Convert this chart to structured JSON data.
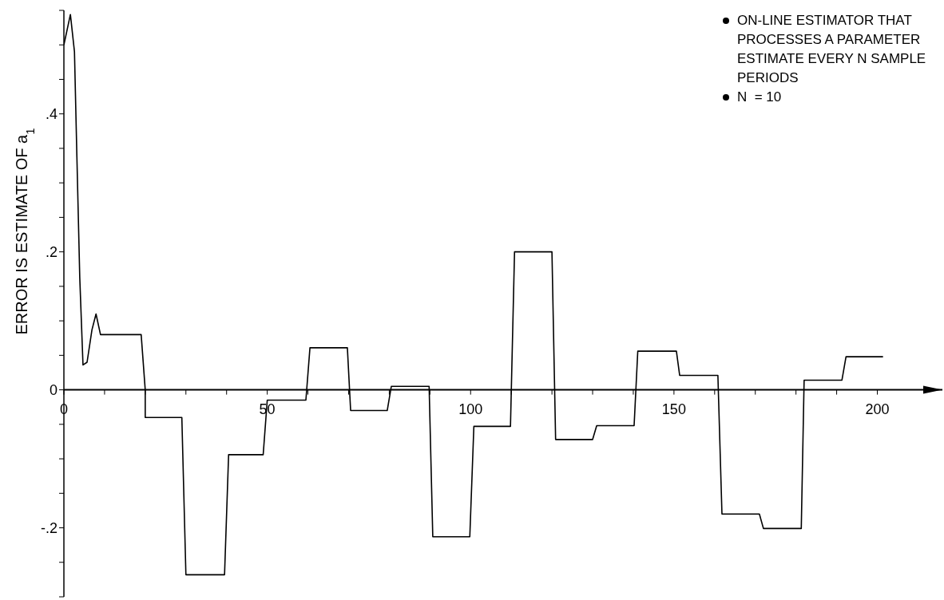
{
  "chart_data": {
    "type": "line",
    "ylabel": "ERROR IS ESTIMATE OF a$_{1}$",
    "annotations": [
      "ON-LINE ESTIMATOR THAT PROCESSES A PARAMETER ESTIMATE EVERY N SAMPLE PERIODS",
      "N  = 10"
    ],
    "xlim": [
      0,
      216
    ],
    "ylim": [
      -0.3,
      0.55
    ],
    "xticks": [
      0,
      {
        "value": 10,
        "label": null
      },
      {
        "value": 20,
        "label": null
      },
      {
        "value": 30,
        "label": null
      },
      {
        "value": 40,
        "label": null
      },
      50,
      {
        "value": 60,
        "label": null
      },
      {
        "value": 70,
        "label": null
      },
      {
        "value": 80,
        "label": null
      },
      {
        "value": 90,
        "label": null
      },
      100,
      {
        "value": 110,
        "label": null
      },
      {
        "value": 120,
        "label": null
      },
      {
        "value": 130,
        "label": null
      },
      {
        "value": 140,
        "label": null
      },
      150,
      {
        "value": 160,
        "label": null
      },
      {
        "value": 170,
        "label": null
      },
      {
        "value": 180,
        "label": null
      },
      {
        "value": 190,
        "label": null
      },
      200
    ],
    "yticks": [
      {
        "value": -0.3,
        "label": null
      },
      {
        "value": -0.25,
        "label": null
      },
      {
        "value": -0.2,
        "label": "-.2"
      },
      {
        "value": -0.15,
        "label": null
      },
      {
        "value": -0.1,
        "label": null
      },
      {
        "value": -0.05,
        "label": null
      },
      0,
      {
        "value": 0.05,
        "label": null
      },
      {
        "value": 0.1,
        "label": null
      },
      {
        "value": 0.15,
        "label": null
      },
      {
        "value": 0.2,
        "label": ".2"
      },
      {
        "value": 0.25,
        "label": null
      },
      {
        "value": 0.3,
        "label": null
      },
      {
        "value": 0.35,
        "label": null
      },
      {
        "value": 0.4,
        "label": ".4"
      },
      {
        "value": 0.45,
        "label": null
      },
      {
        "value": 0.5,
        "label": null
      },
      {
        "value": 0.55,
        "label": null
      }
    ],
    "marker": "none",
    "series": [
      {
        "color": "#000000",
        "x": [
          0,
          1.6,
          2.6,
          3.2,
          3.9,
          4.7,
          5.7,
          6.9,
          7.9,
          9,
          19,
          20,
          20,
          29,
          30,
          39.5,
          40.5,
          49,
          50,
          59.5,
          60.5,
          69.7,
          70.5,
          79.5,
          80.5,
          89.8,
          90.7,
          99.8,
          100.8,
          109.8,
          110.8,
          120,
          120.9,
          130,
          131,
          140.2,
          141.1,
          150.6,
          151.4,
          160.8,
          161.8,
          171,
          172,
          181.3,
          182,
          191.3,
          192.3,
          201.4
        ],
        "values": [
          0.5,
          0.544,
          0.49,
          0.337,
          0.163,
          0.036,
          0.04,
          0.087,
          0.11,
          0.08,
          0.08,
          0,
          -0.04,
          -0.04,
          -0.268,
          -0.268,
          -0.094,
          -0.094,
          -0.015,
          -0.015,
          0.061,
          0.061,
          -0.03,
          -0.03,
          0.005,
          0.005,
          -0.213,
          -0.213,
          -0.053,
          -0.053,
          0.2,
          0.2,
          -0.072,
          -0.072,
          -0.052,
          -0.052,
          0.056,
          0.056,
          0.021,
          0.021,
          -0.18,
          -0.18,
          -0.201,
          -0.201,
          0.014,
          0.014,
          0.048,
          0.048
        ]
      }
    ]
  }
}
